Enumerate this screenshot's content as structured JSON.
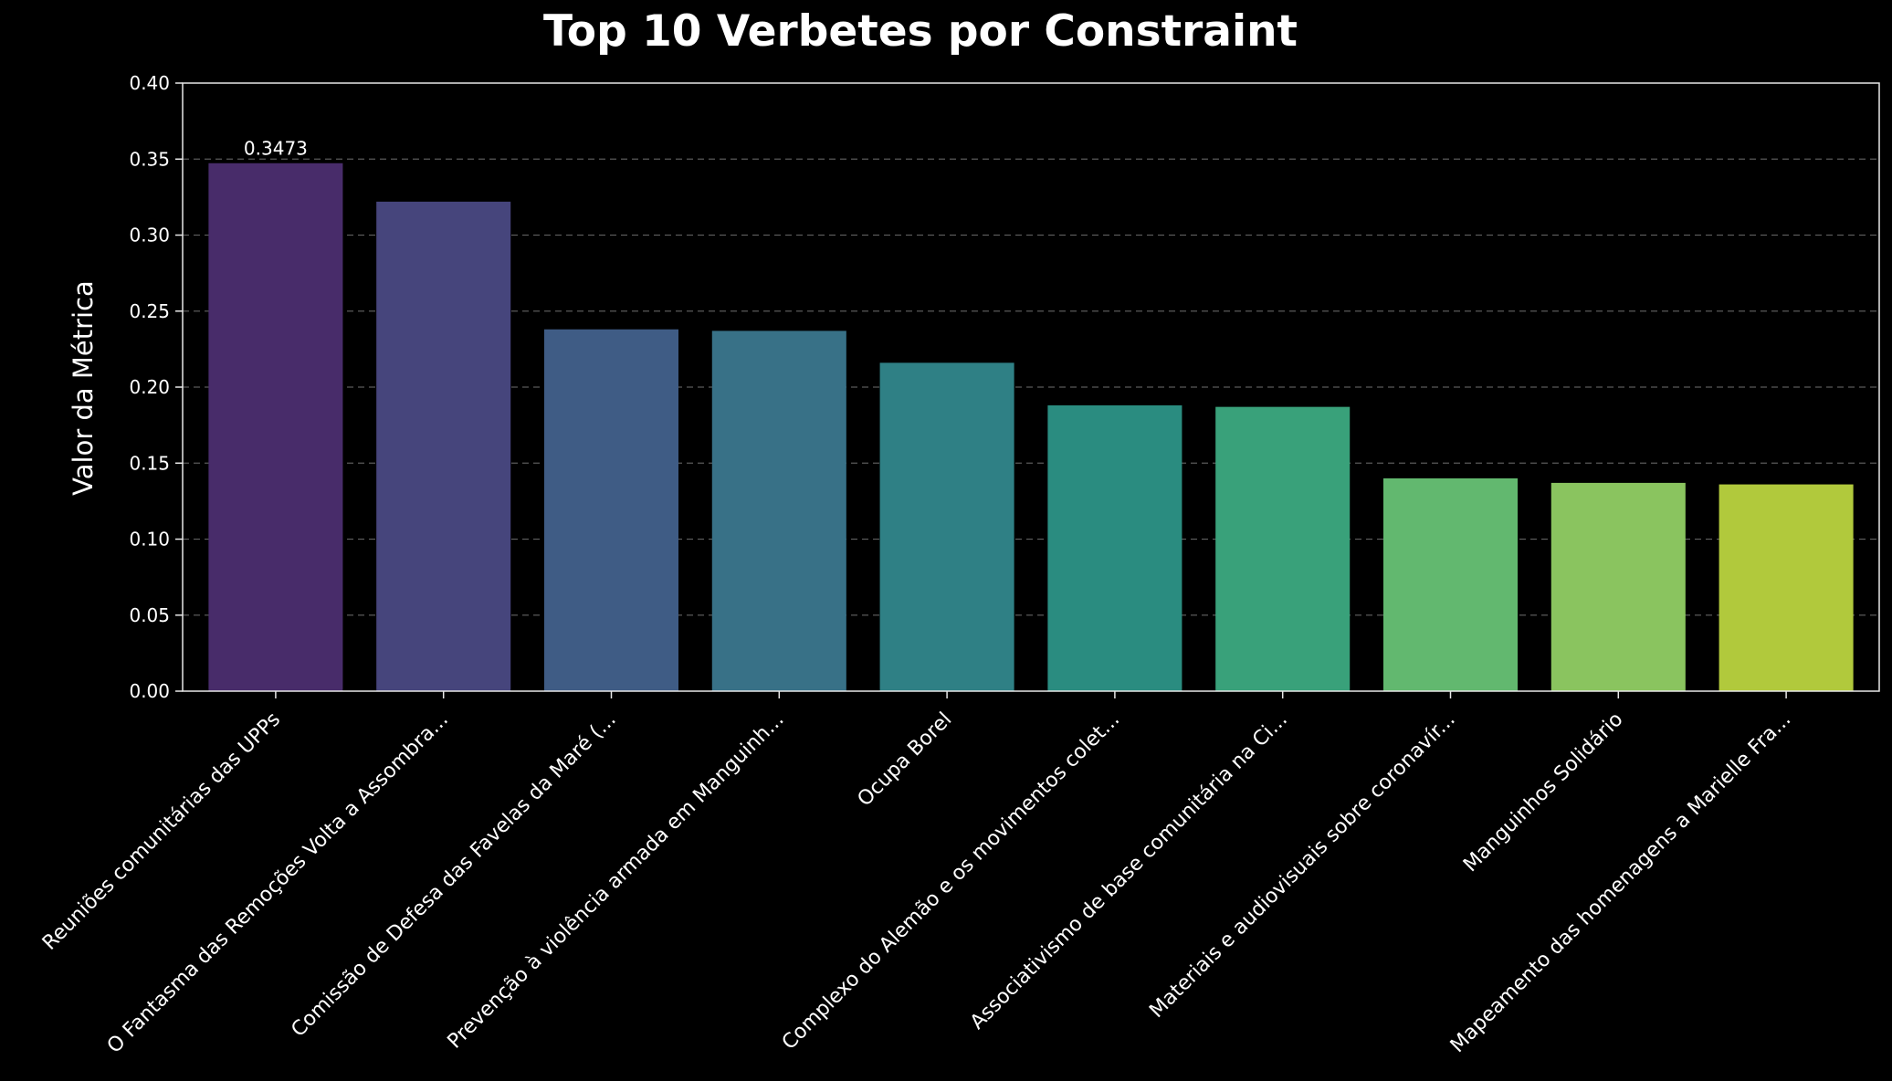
{
  "chart_data": {
    "type": "bar",
    "title": "Top 10 Verbetes por Constraint",
    "xlabel": "",
    "ylabel": "Valor da Métrica",
    "ylim": [
      0,
      0.4
    ],
    "yticks": [
      "0.00",
      "0.05",
      "0.10",
      "0.15",
      "0.20",
      "0.25",
      "0.30",
      "0.35",
      "0.40"
    ],
    "grid": "y-dashed",
    "categories": [
      "Reuniões comunitárias das UPPs",
      "O Fantasma das Remoções Volta a Assombra...",
      "Comissão de Defesa das Favelas da Maré (...",
      "Prevenção à violência armada em Manguinh...",
      "Ocupa Borel",
      "Complexo do Alemão e os movimentos colet...",
      "Associativismo de base comunitária na Ci...",
      "Materiais e audiovisuais sobre coronavír...",
      "Manguinhos Solidário",
      "Mapeamento das homenagens a Marielle Fra..."
    ],
    "values": [
      0.3473,
      0.322,
      0.238,
      0.237,
      0.216,
      0.188,
      0.187,
      0.14,
      0.137,
      0.136
    ],
    "data_labels": [
      "0.3473",
      "",
      "",
      "",
      "",
      "",
      "",
      "",
      "",
      ""
    ],
    "colors": [
      "#482c6a",
      "#46457c",
      "#3f5c85",
      "#387187",
      "#2f8085",
      "#2a8c80",
      "#39a17a",
      "#62b86f",
      "#8ac45f",
      "#b1c93c"
    ]
  }
}
